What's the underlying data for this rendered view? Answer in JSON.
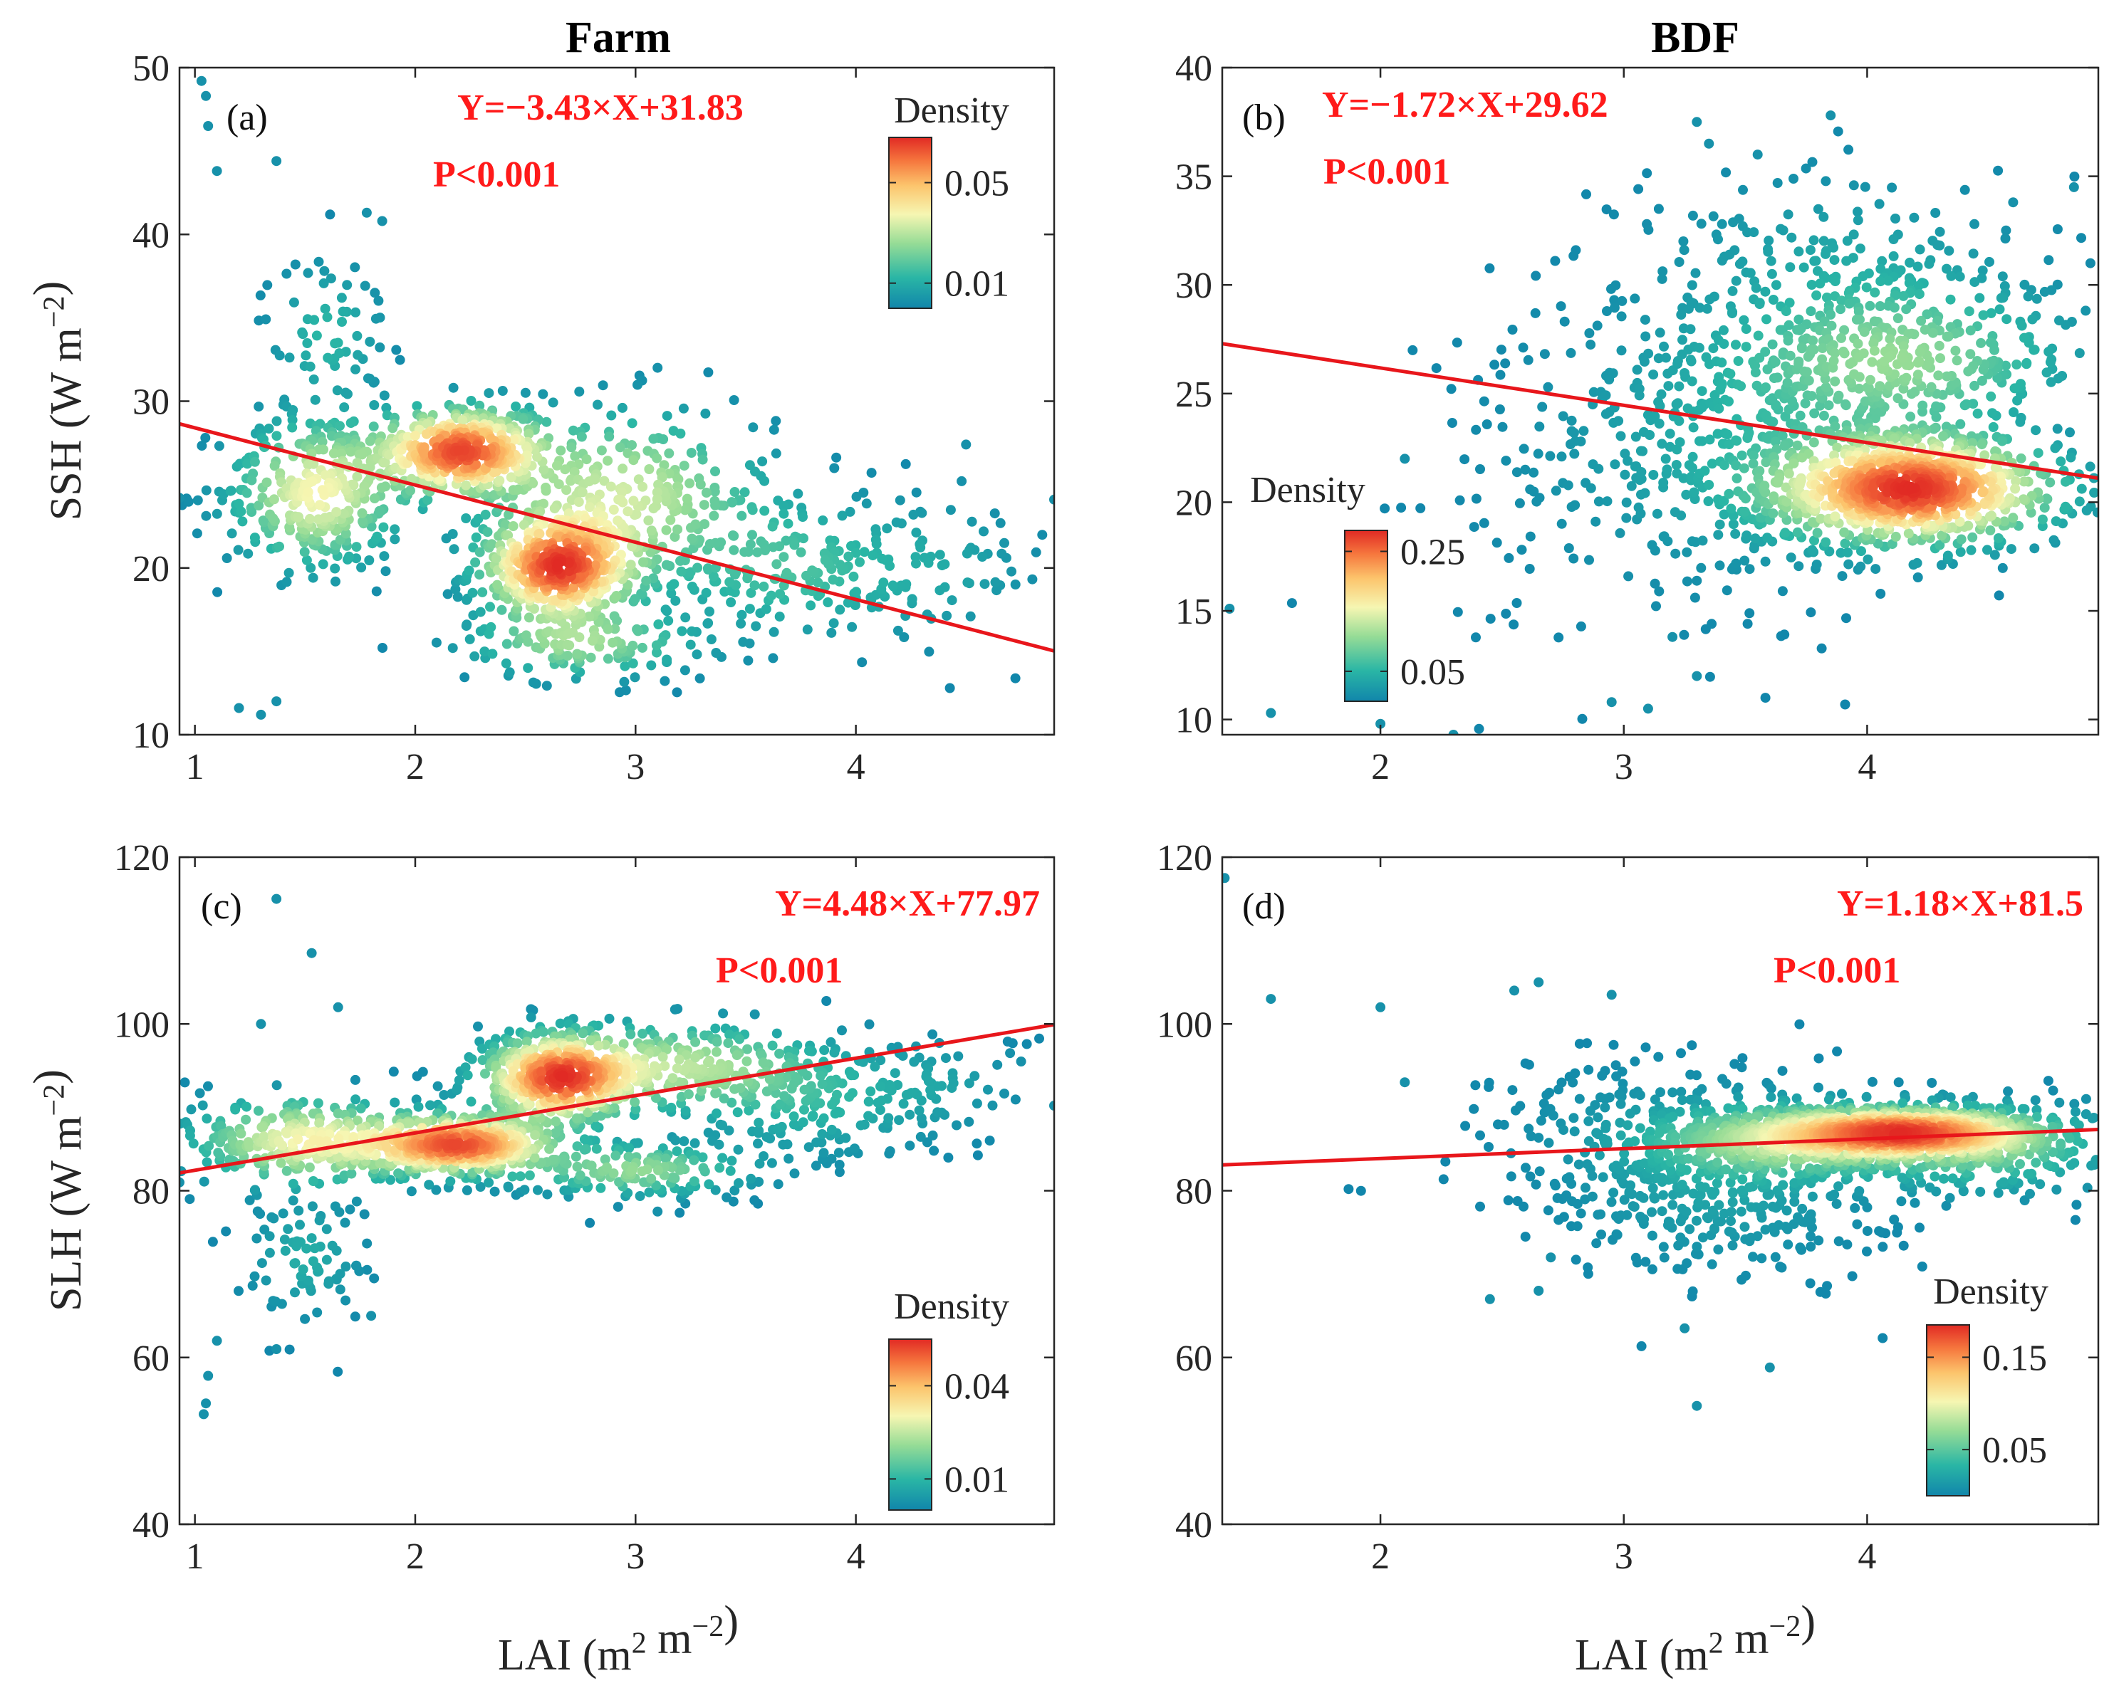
{
  "figure": {
    "column_titles": [
      "Farm",
      "BDF"
    ],
    "xlabel_bottom": "LAI (m² m⁻²)",
    "colorbar_label": "Density"
  },
  "chart_data": [
    {
      "type": "scatter",
      "panel": "(a)",
      "column": "Farm",
      "title": "Farm",
      "xlabel": "",
      "ylabel": "SSH (W m⁻²)",
      "xlim": [
        0.93,
        4.9
      ],
      "ylim": [
        10,
        50
      ],
      "xticks": [
        1,
        2,
        3,
        4
      ],
      "yticks": [
        10,
        20,
        30,
        40,
        50
      ],
      "equation": "Y=−3.43×X+31.83",
      "p_value": "P<0.001",
      "fit": {
        "slope": -3.43,
        "intercept": 31.83
      },
      "colorbar": {
        "label": "Density",
        "ticks": [
          0.01,
          0.05
        ],
        "range": [
          0.0,
          0.068
        ],
        "placement": "top-right"
      },
      "clusters": [
        {
          "cx": 2.2,
          "cy": 27.0,
          "sx": 0.22,
          "sy": 1.5,
          "n": 420,
          "peak": 1.0
        },
        {
          "cx": 2.65,
          "cy": 20.0,
          "sx": 0.2,
          "sy": 1.8,
          "n": 460,
          "peak": 1.0
        },
        {
          "cx": 1.55,
          "cy": 24.5,
          "sx": 0.22,
          "sy": 2.5,
          "n": 300,
          "peak": 0.55
        },
        {
          "cx": 2.95,
          "cy": 24.5,
          "sx": 0.35,
          "sy": 2.8,
          "n": 260,
          "peak": 0.45
        },
        {
          "cx": 3.7,
          "cy": 20.0,
          "sx": 0.35,
          "sy": 2.5,
          "n": 200,
          "peak": 0.2
        },
        {
          "cx": 2.75,
          "cy": 15.5,
          "sx": 0.3,
          "sy": 1.2,
          "n": 120,
          "peak": 0.35
        },
        {
          "cx": 1.6,
          "cy": 34.0,
          "sx": 0.15,
          "sy": 2.5,
          "n": 70,
          "peak": 0.15
        },
        {
          "cx": 4.4,
          "cy": 20.0,
          "sx": 0.25,
          "sy": 2.5,
          "n": 60,
          "peak": 0.08
        }
      ],
      "outliers": [
        [
          1.03,
          49.2
        ],
        [
          1.05,
          48.3
        ],
        [
          1.06,
          46.5
        ],
        [
          1.1,
          43.8
        ],
        [
          1.37,
          44.4
        ],
        [
          1.3,
          11.2
        ],
        [
          1.37,
          12.0
        ],
        [
          1.2,
          11.6
        ],
        [
          0.93,
          24.2
        ],
        [
          4.9,
          24.1
        ],
        [
          4.5,
          27.4
        ],
        [
          3.1,
          32.0
        ],
        [
          4.48,
          25.2
        ],
        [
          1.85,
          40.8
        ],
        [
          1.78,
          41.3
        ]
      ]
    },
    {
      "type": "scatter",
      "panel": "(b)",
      "column": "BDF",
      "title": "BDF",
      "xlabel": "",
      "ylabel": "",
      "xlim": [
        1.35,
        4.95
      ],
      "ylim": [
        9.3,
        40
      ],
      "xticks": [
        2,
        3,
        4
      ],
      "yticks": [
        10,
        15,
        20,
        25,
        30,
        35,
        40
      ],
      "equation": "Y=−1.72×X+29.62",
      "p_value": "P<0.001",
      "fit": {
        "slope": -1.72,
        "intercept": 29.62
      },
      "colorbar": {
        "label": "Density",
        "ticks": [
          0.05,
          0.25
        ],
        "range": [
          0.0,
          0.285
        ],
        "placement": "left"
      },
      "clusters": [
        {
          "cx": 4.18,
          "cy": 20.6,
          "sx": 0.33,
          "sy": 1.4,
          "n": 800,
          "peak": 1.0
        },
        {
          "cx": 4.15,
          "cy": 26.5,
          "sx": 0.4,
          "sy": 2.0,
          "n": 350,
          "peak": 0.3
        },
        {
          "cx": 3.5,
          "cy": 23.0,
          "sx": 0.4,
          "sy": 3.5,
          "n": 420,
          "peak": 0.1
        },
        {
          "cx": 3.9,
          "cy": 31.0,
          "sx": 0.45,
          "sy": 2.5,
          "n": 160,
          "peak": 0.08
        },
        {
          "cx": 2.9,
          "cy": 22.0,
          "sx": 0.35,
          "sy": 4.5,
          "n": 120,
          "peak": 0.02
        }
      ],
      "outliers": [
        [
          1.38,
          15.1
        ],
        [
          1.55,
          10.3
        ],
        [
          2.0,
          9.8
        ],
        [
          2.3,
          9.3
        ],
        [
          2.1,
          22.0
        ],
        [
          2.95,
          10.8
        ],
        [
          3.1,
          10.5
        ],
        [
          3.2,
          13.8
        ],
        [
          3.3,
          12.0
        ],
        [
          3.3,
          37.5
        ],
        [
          3.35,
          36.5
        ],
        [
          3.55,
          36.0
        ],
        [
          3.85,
          37.8
        ],
        [
          4.85,
          34.5
        ],
        [
          4.6,
          33.8
        ]
      ]
    },
    {
      "type": "scatter",
      "panel": "(c)",
      "column": "Farm",
      "title": "",
      "xlabel": "LAI (m² m⁻²)",
      "ylabel": "SLH (W m⁻²)",
      "xlim": [
        0.93,
        4.9
      ],
      "ylim": [
        40,
        120
      ],
      "xticks": [
        1,
        2,
        3,
        4
      ],
      "yticks": [
        40,
        60,
        80,
        100,
        120
      ],
      "equation": "Y=4.48×X+77.97",
      "p_value": "P<0.001",
      "fit": {
        "slope": 4.48,
        "intercept": 77.97
      },
      "colorbar": {
        "label": "Density",
        "ticks": [
          0.01,
          0.04
        ],
        "range": [
          0.0,
          0.055
        ],
        "placement": "bottom-right"
      },
      "clusters": [
        {
          "cx": 2.65,
          "cy": 93.5,
          "sx": 0.2,
          "sy": 3.0,
          "n": 420,
          "peak": 1.0
        },
        {
          "cx": 2.2,
          "cy": 85.5,
          "sx": 0.25,
          "sy": 2.0,
          "n": 460,
          "peak": 1.0
        },
        {
          "cx": 1.5,
          "cy": 86.0,
          "sx": 0.3,
          "sy": 3.0,
          "n": 300,
          "peak": 0.55
        },
        {
          "cx": 3.2,
          "cy": 95.0,
          "sx": 0.35,
          "sy": 3.0,
          "n": 220,
          "peak": 0.4
        },
        {
          "cx": 3.0,
          "cy": 82.5,
          "sx": 0.3,
          "sy": 1.8,
          "n": 150,
          "peak": 0.35
        },
        {
          "cx": 3.8,
          "cy": 91.0,
          "sx": 0.35,
          "sy": 4.0,
          "n": 200,
          "peak": 0.15
        },
        {
          "cx": 1.5,
          "cy": 72.0,
          "sx": 0.15,
          "sy": 4.0,
          "n": 80,
          "peak": 0.12
        },
        {
          "cx": 4.4,
          "cy": 93.0,
          "sx": 0.2,
          "sy": 3.0,
          "n": 40,
          "peak": 0.06
        }
      ],
      "outliers": [
        [
          1.37,
          115.0
        ],
        [
          1.53,
          108.5
        ],
        [
          1.3,
          100.0
        ],
        [
          1.05,
          54.5
        ],
        [
          1.04,
          53.2
        ],
        [
          1.06,
          57.8
        ],
        [
          1.1,
          62.0
        ],
        [
          1.37,
          61.0
        ],
        [
          0.93,
          81.0
        ],
        [
          4.9,
          90.2
        ],
        [
          4.7,
          96.5
        ],
        [
          4.75,
          95.5
        ],
        [
          3.1,
          77.5
        ],
        [
          1.65,
          102.0
        ],
        [
          1.8,
          65.0
        ]
      ]
    },
    {
      "type": "scatter",
      "panel": "(d)",
      "column": "BDF",
      "title": "",
      "xlabel": "LAI (m² m⁻²)",
      "ylabel": "",
      "xlim": [
        1.35,
        4.95
      ],
      "ylim": [
        40,
        120
      ],
      "xticks": [
        2,
        3,
        4
      ],
      "yticks": [
        40,
        60,
        80,
        100,
        120
      ],
      "equation": "Y=1.18×X+81.5",
      "p_value": "P<0.001",
      "fit": {
        "slope": 1.18,
        "intercept": 81.5
      },
      "colorbar": {
        "label": "Density",
        "ticks": [
          0.05,
          0.15
        ],
        "range": [
          0.0,
          0.185
        ],
        "placement": "bottom-right"
      },
      "clusters": [
        {
          "cx": 4.15,
          "cy": 87.0,
          "sx": 0.3,
          "sy": 1.6,
          "n": 800,
          "peak": 1.0
        },
        {
          "cx": 3.7,
          "cy": 86.0,
          "sx": 0.35,
          "sy": 2.5,
          "n": 450,
          "peak": 0.45
        },
        {
          "cx": 3.4,
          "cy": 81.0,
          "sx": 0.35,
          "sy": 6.0,
          "n": 380,
          "peak": 0.1
        },
        {
          "cx": 4.5,
          "cy": 85.0,
          "sx": 0.3,
          "sy": 3.0,
          "n": 250,
          "peak": 0.3
        },
        {
          "cx": 3.0,
          "cy": 88.0,
          "sx": 0.35,
          "sy": 5.0,
          "n": 120,
          "peak": 0.03
        }
      ],
      "outliers": [
        [
          1.36,
          117.5
        ],
        [
          1.55,
          103.0
        ],
        [
          2.0,
          102.0
        ],
        [
          2.1,
          93.0
        ],
        [
          2.45,
          67.0
        ],
        [
          2.65,
          68.0
        ],
        [
          2.7,
          72.0
        ],
        [
          3.3,
          54.2
        ],
        [
          3.6,
          58.8
        ],
        [
          3.25,
          63.5
        ],
        [
          2.55,
          104.0
        ],
        [
          2.65,
          105.0
        ],
        [
          2.95,
          103.5
        ],
        [
          4.9,
          91.0
        ]
      ]
    }
  ]
}
